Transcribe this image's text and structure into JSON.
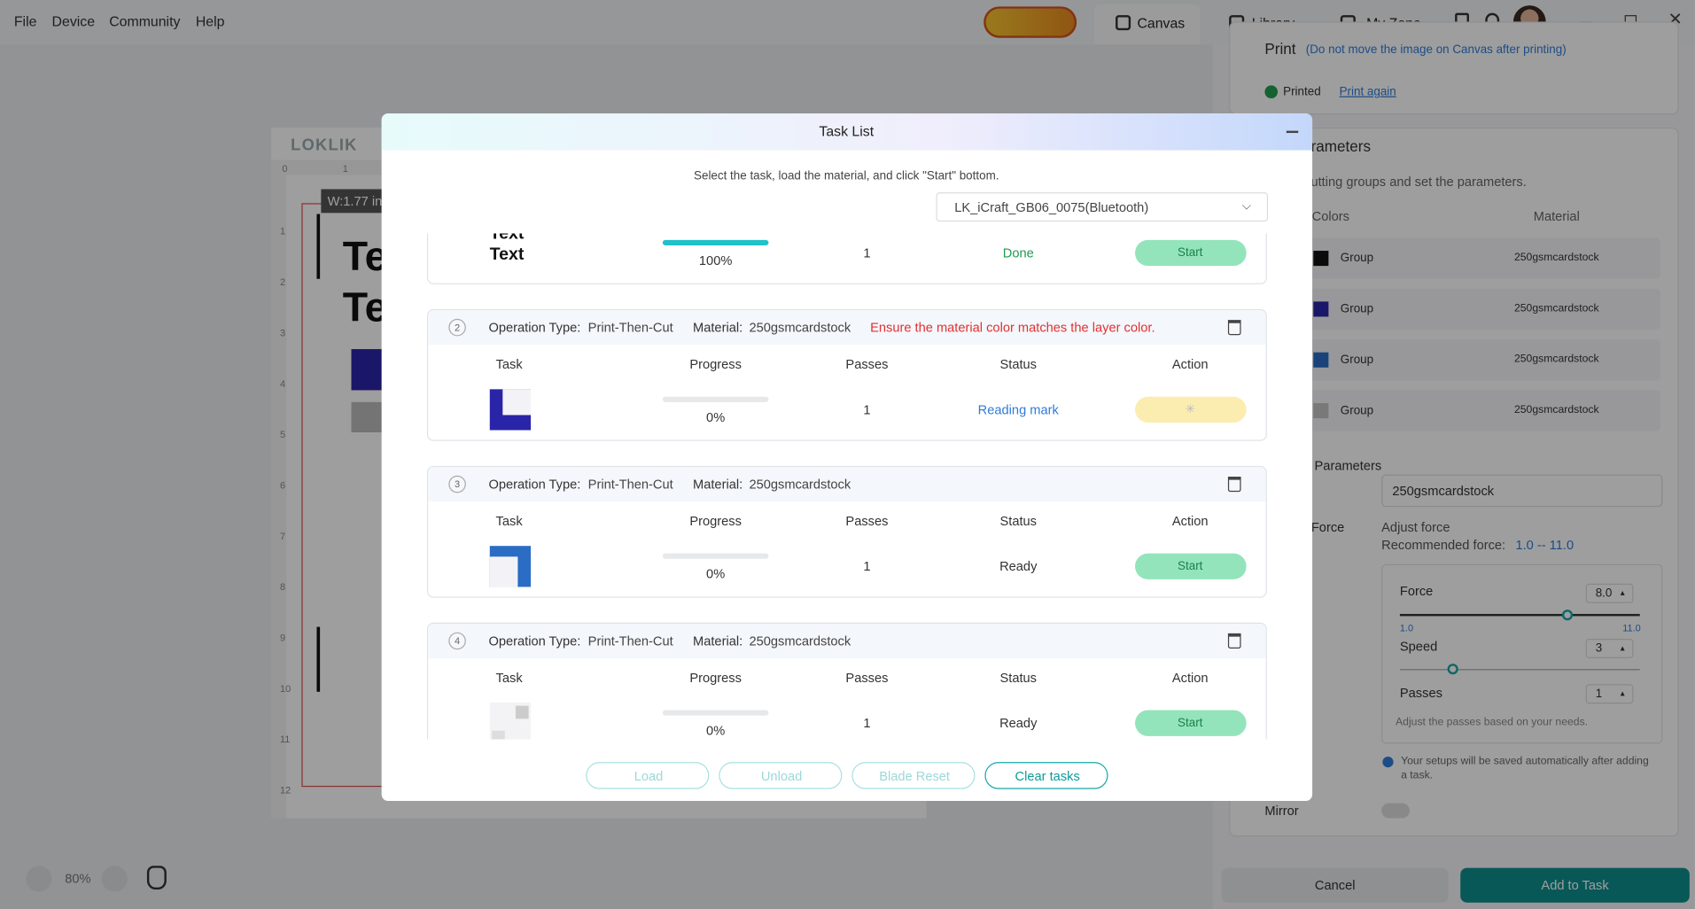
{
  "menu": [
    "File",
    "Device",
    "Community",
    "Help"
  ],
  "tabs": [
    "Canvas",
    "Library",
    "My Zone"
  ],
  "canvas": {
    "logo": "LOKLIK",
    "dimension": "W:1.77 in",
    "ruler_top": [
      0,
      1
    ],
    "ruler_left": [
      1,
      2,
      3,
      4,
      5,
      6,
      7,
      8,
      9,
      10,
      11,
      12
    ],
    "preview_text": [
      "Te",
      "Te"
    ],
    "zoom": "80%"
  },
  "panel": {
    "print": {
      "title": "Print",
      "note": "(Do not move the image on Canvas after printing)",
      "status": "Printed",
      "link": "Print again"
    },
    "cut": {
      "title": "Cut Parameters",
      "subtitle": "Select cutting groups and set the parameters.",
      "headers": [
        "Colors",
        "Material"
      ],
      "rows": [
        {
          "color": "#111111",
          "group": "Group",
          "material": "250gsmcardstock"
        },
        {
          "color": "#2a24a8",
          "group": "Group",
          "material": "250gsmcardstock"
        },
        {
          "color": "#2b6cc4",
          "group": "Group",
          "material": "250gsmcardstock"
        },
        {
          "color": "#c4c4c4",
          "group": "Group",
          "material": "250gsmcardstock"
        }
      ]
    },
    "material": {
      "title": "Material Parameters",
      "select": "250gsmcardstock"
    },
    "force": {
      "label": "Force",
      "note": "Adjust force",
      "recommended": "Recommended force:",
      "range": "1.0 -- 11.0"
    },
    "sliders": {
      "force": {
        "label": "Force",
        "value": {
          "value": 8,
          "label": "8.0"
        },
        "min": {
          "value": 1,
          "label": "1.0"
        },
        "max": {
          "value": 11,
          "label": "11.0"
        }
      },
      "speed": {
        "label": "Speed",
        "value": 3
      },
      "passes": {
        "label": "Passes",
        "value": 1
      },
      "hint": "Adjust the passes based on your needs."
    },
    "info": "Your setups will be saved automatically after adding a task.",
    "mirror": "Mirror",
    "cancel": "Cancel",
    "add": "Add to Task"
  },
  "modal": {
    "title": "Task List",
    "instruction": "Select the task, load the material, and click \"Start\" bottom.",
    "device": "LK_iCraft_GB06_0075(Bluetooth)",
    "labels": {
      "operation": "Operation Type:",
      "material": "Material:"
    },
    "columns": [
      "Task",
      "Progress",
      "Passes",
      "Status",
      "Action"
    ],
    "tasks": [
      {
        "thumbnail_text": [
          "Text",
          "Text"
        ],
        "progress": {
          "value": 100,
          "label": "100%"
        },
        "passes": 1,
        "status": "Done",
        "action": "Start"
      },
      {
        "index": 2,
        "operation": "Print-Then-Cut",
        "material": "250gsmcardstock",
        "warning": "Ensure the material color matches the layer color.",
        "progress": {
          "value": 0,
          "label": "0%"
        },
        "passes": 1,
        "status": "Reading mark"
      },
      {
        "index": 3,
        "operation": "Print-Then-Cut",
        "material": "250gsmcardstock",
        "progress": {
          "value": 0,
          "label": "0%"
        },
        "passes": 1,
        "status": "Ready",
        "action": "Start"
      },
      {
        "index": 4,
        "operation": "Print-Then-Cut",
        "material": "250gsmcardstock",
        "progress": {
          "value": 0,
          "label": "0%"
        },
        "passes": 1,
        "status": "Ready",
        "action": "Start"
      }
    ],
    "buttons": [
      "Load",
      "Unload",
      "Blade Reset",
      "Clear tasks"
    ]
  }
}
